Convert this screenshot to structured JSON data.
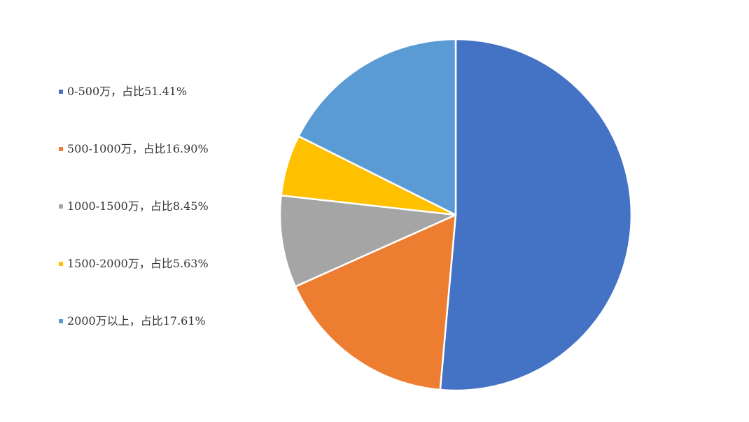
{
  "chart_data": {
    "type": "pie",
    "title": "",
    "legend_position": "left",
    "start_angle_deg": 0,
    "direction": "clockwise",
    "slices": [
      {
        "label": "0-500万，占比51.41%",
        "value": 51.41,
        "color": "#4472C4"
      },
      {
        "label": "500-1000万，占比16.90%",
        "value": 16.9,
        "color": "#ED7D31"
      },
      {
        "label": "1000-1500万，占比8.45%",
        "value": 8.45,
        "color": "#A5A5A5"
      },
      {
        "label": "1500-2000万，占比5.63%",
        "value": 5.63,
        "color": "#FFC000"
      },
      {
        "label": "2000万以上，占比17.61%",
        "value": 17.61,
        "color": "#5B9BD5"
      }
    ]
  }
}
